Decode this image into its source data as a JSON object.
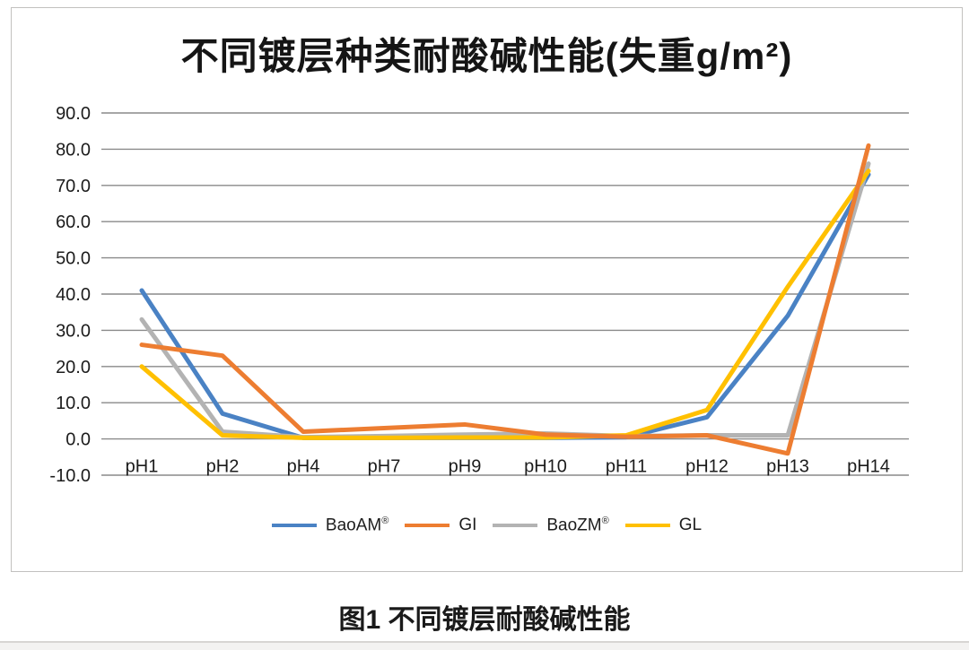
{
  "chart_data": {
    "type": "line",
    "title": "不同镀层种类耐酸碱性能(失重g/m²)",
    "xlabel": "",
    "ylabel": "",
    "categories": [
      "pH1",
      "pH2",
      "pH4",
      "pH7",
      "pH9",
      "pH10",
      "pH11",
      "pH12",
      "pH13",
      "pH14"
    ],
    "series": [
      {
        "name": "BaoAM®",
        "color": "#4a82c4",
        "values": [
          41.0,
          7.0,
          0.3,
          0.3,
          0.3,
          0.3,
          0.5,
          6.0,
          34.0,
          73.0
        ]
      },
      {
        "name": "GI",
        "color": "#ed7d31",
        "values": [
          26.0,
          23.0,
          2.0,
          3.0,
          4.0,
          1.2,
          0.6,
          1.0,
          -4.0,
          81.0
        ]
      },
      {
        "name": "BaoZM®",
        "color": "#b3b3b3",
        "values": [
          33.0,
          2.0,
          0.5,
          0.8,
          1.2,
          1.5,
          0.8,
          1.0,
          1.0,
          76.0
        ]
      },
      {
        "name": "GL",
        "color": "#ffc000",
        "values": [
          20.0,
          1.0,
          0.3,
          0.3,
          0.4,
          0.4,
          1.0,
          8.0,
          42.0,
          74.0
        ]
      }
    ],
    "draw_order": [
      "BaoAM®",
      "BaoZM®",
      "GL",
      "GI"
    ],
    "ylim": [
      -10,
      90
    ],
    "ytick_step": 10,
    "ytick_decimals": 1,
    "grid": "horizontal",
    "gridline_color": "#8a8a8a",
    "axis_text_color": "#1c1c1c",
    "legend_position": "bottom"
  },
  "caption": "图1 不同镀层耐酸碱性能"
}
